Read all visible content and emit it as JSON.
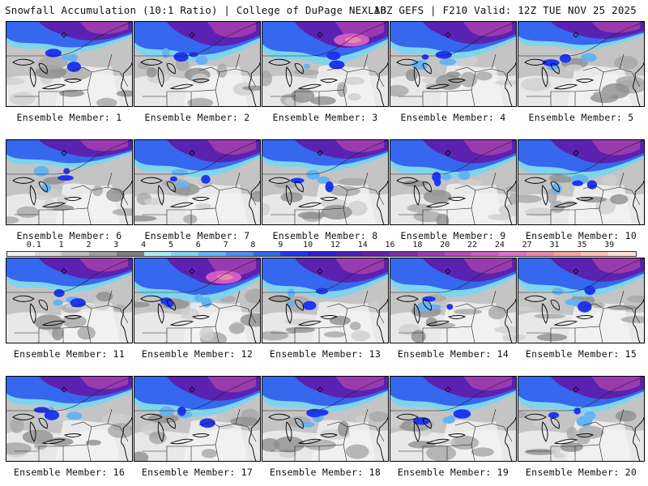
{
  "header": {
    "title_left": "Snowfall Accumulation (10:1 Ratio) | College of DuPage NEXLAB",
    "title_right": "18Z GEFS | F210 Valid: 12Z TUE NOV 25 2025"
  },
  "legend": {
    "ticks": [
      "0.1",
      "1",
      "2",
      "3",
      "4",
      "5",
      "6",
      "7",
      "8",
      "9",
      "10",
      "12",
      "14",
      "16",
      "18",
      "20",
      "22",
      "24",
      "27",
      "31",
      "35",
      "39"
    ],
    "colors": [
      "#f2f2f2",
      "#d9d9d9",
      "#bdbdbd",
      "#9e9e9e",
      "#7c7c7c",
      "#a6ecf5",
      "#7fd4ee",
      "#66b3f2",
      "#4f8ef0",
      "#3567ef",
      "#1f36f0",
      "#2a1fd0",
      "#4a1db4",
      "#6420a8",
      "#7d2ca6",
      "#9a3aaf",
      "#b44bb8",
      "#cf5cc4",
      "#e070c6",
      "#e88aae",
      "#f0a6a0",
      "#f7c6b4",
      "#fbe3d4"
    ]
  },
  "panels": [
    {
      "caption": "Ensemble Member: 1",
      "snow": 0.45,
      "seed": 1
    },
    {
      "caption": "Ensemble Member: 2",
      "snow": 0.75,
      "seed": 2
    },
    {
      "caption": "Ensemble Member: 3",
      "snow": 0.85,
      "seed": 3
    },
    {
      "caption": "Ensemble Member: 4",
      "snow": 0.65,
      "seed": 4
    },
    {
      "caption": "Ensemble Member: 5",
      "snow": 0.35,
      "seed": 5
    },
    {
      "caption": "Ensemble Member: 6",
      "snow": 0.35,
      "seed": 6
    },
    {
      "caption": "Ensemble Member: 7",
      "snow": 0.65,
      "seed": 7
    },
    {
      "caption": "Ensemble Member: 8",
      "snow": 0.45,
      "seed": 8
    },
    {
      "caption": "Ensemble Member: 9",
      "snow": 0.7,
      "seed": 9
    },
    {
      "caption": "Ensemble Member: 10",
      "snow": 0.7,
      "seed": 10
    },
    {
      "caption": "Ensemble Member: 11",
      "snow": 0.55,
      "seed": 11
    },
    {
      "caption": "Ensemble Member: 12",
      "snow": 0.9,
      "seed": 12
    },
    {
      "caption": "Ensemble Member: 13",
      "snow": 0.75,
      "seed": 13
    },
    {
      "caption": "Ensemble Member: 14",
      "snow": 0.7,
      "seed": 14
    },
    {
      "caption": "Ensemble Member: 15",
      "snow": 0.7,
      "seed": 15
    },
    {
      "caption": "Ensemble Member: 16",
      "snow": 0.5,
      "seed": 16
    },
    {
      "caption": "Ensemble Member: 17",
      "snow": 0.75,
      "seed": 17
    },
    {
      "caption": "Ensemble Member: 18",
      "snow": 0.6,
      "seed": 18
    },
    {
      "caption": "Ensemble Member: 19",
      "snow": 0.6,
      "seed": 19
    },
    {
      "caption": "Ensemble Member: 20",
      "snow": 0.65,
      "seed": 20
    }
  ]
}
